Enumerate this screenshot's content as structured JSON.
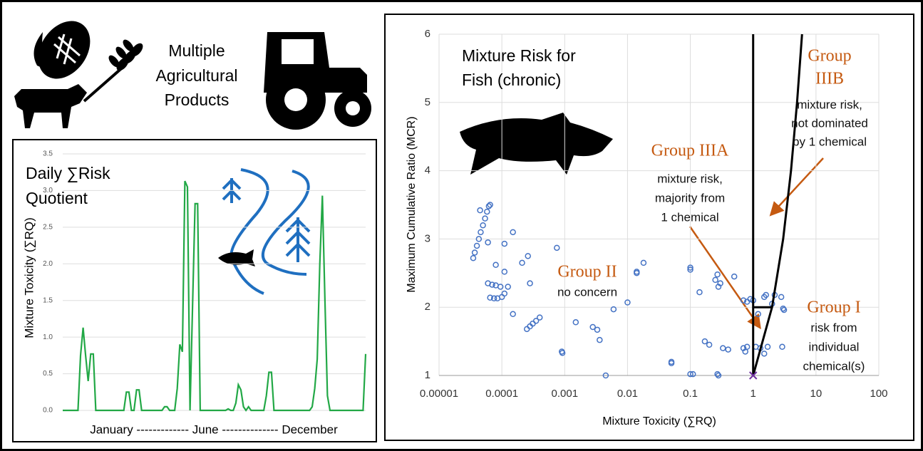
{
  "header": {
    "title_lines": [
      "Multiple",
      "Agricultural",
      "Products"
    ]
  },
  "chart_data": [
    {
      "type": "line",
      "title_lines": [
        "Daily ∑Risk",
        "Quotient"
      ],
      "y_label": "Mixture Toxicity (∑RQ)",
      "x_label": "January ------------- June -------------- December",
      "color": "#22a846",
      "ylim": [
        0,
        3.5
      ],
      "yticks": [
        {
          "value": 0,
          "label": "0.0"
        },
        0.5,
        {
          "value": 1,
          "label": "1.0"
        },
        1.5,
        {
          "value": 2,
          "label": "2.0"
        },
        2.5,
        {
          "value": 3,
          "label": "3.0"
        },
        3.5
      ],
      "grid": true,
      "values": [
        0,
        0,
        0,
        0,
        0,
        0,
        0,
        0.75,
        1.13,
        0.75,
        0.4,
        0.77,
        0.77,
        0,
        0,
        0,
        0,
        0,
        0,
        0,
        0,
        0,
        0,
        0,
        0,
        0.25,
        0.25,
        0,
        0,
        0.28,
        0.28,
        0,
        0,
        0,
        0,
        0,
        0,
        0,
        0,
        0,
        0.05,
        0.05,
        0,
        0,
        0,
        0.3,
        0.9,
        0.8,
        3.13,
        3.05,
        0,
        1.4,
        2.82,
        2.82,
        0,
        0,
        0,
        0,
        0,
        0,
        0,
        0,
        0,
        0,
        0,
        0.02,
        0,
        0,
        0.1,
        0.35,
        0.28,
        0.05,
        0,
        0.05,
        0,
        0,
        0,
        0,
        0,
        0,
        0.2,
        0.52,
        0.52,
        0,
        0,
        0,
        0,
        0,
        0,
        0,
        0,
        0,
        0,
        0,
        0,
        0,
        0,
        0,
        0.05,
        0.3,
        0.7,
        2.0,
        2.93,
        1.5,
        0.2,
        0,
        0,
        0,
        0,
        0,
        0,
        0,
        0,
        0,
        0,
        0,
        0,
        0,
        0,
        0.77
      ]
    },
    {
      "type": "scatter",
      "title_lines": [
        "Mixture Risk for",
        "Fish (chronic)"
      ],
      "y_label": "Maximum Cumulative Ratio (MCR)",
      "x_label": "Mixture Toxicity (∑RQ)",
      "log_x": true,
      "grid": true,
      "xlim": [
        1e-05,
        100
      ],
      "xticks": [
        1e-05,
        0.0001,
        0.001,
        0.01,
        0.1,
        1,
        10,
        100
      ],
      "ylim": [
        1,
        6
      ],
      "yticks": [
        1,
        2,
        3,
        4,
        5,
        6
      ],
      "points": {
        "color": "#4472c4",
        "x": [
          3.5e-05,
          3.7e-05,
          4e-05,
          4.3e-05,
          4.6e-05,
          5e-05,
          5.4e-05,
          5.8e-05,
          6.2e-05,
          6.5e-05,
          4.5e-05,
          6e-05,
          7e-05,
          8e-05,
          9.5e-05,
          6.5e-05,
          7.5e-05,
          8.5e-05,
          0.0001,
          0.00011,
          0.000125,
          0.00025,
          0.00028,
          0.00031,
          0.00035,
          0.0004,
          6e-05,
          0.00015,
          0.00011,
          0.00011,
          8e-05,
          0.00015,
          0.00021,
          0.00026,
          0.00028,
          0.00075,
          0.0009,
          0.00092,
          0.0015,
          0.0028,
          0.0033,
          0.0036,
          0.0045,
          0.006,
          0.01,
          0.014,
          0.014,
          0.018,
          0.05,
          0.05,
          0.1,
          0.1,
          0.1,
          0.11,
          0.14,
          0.17,
          0.2,
          0.25,
          0.27,
          0.28,
          0.27,
          0.28,
          0.3,
          0.33,
          0.4,
          0.5,
          0.7,
          0.75,
          0.8,
          0.8,
          0.9,
          1.0,
          1.1,
          1.2,
          1.5,
          1.5,
          1.6,
          1.7,
          2.0,
          2.2,
          2.8,
          2.9,
          3.0,
          3.1,
          0.7,
          1.3
        ],
        "y": [
          2.72,
          2.8,
          2.9,
          3.0,
          3.1,
          3.2,
          3.3,
          3.4,
          3.48,
          3.5,
          3.42,
          2.35,
          2.33,
          2.32,
          2.3,
          2.14,
          2.13,
          2.13,
          2.15,
          2.2,
          2.3,
          1.68,
          1.72,
          1.76,
          1.8,
          1.85,
          2.95,
          3.1,
          2.93,
          2.52,
          2.62,
          1.9,
          2.65,
          2.75,
          2.35,
          2.87,
          1.35,
          1.33,
          1.78,
          1.71,
          1.67,
          1.52,
          1.0,
          1.97,
          2.07,
          2.52,
          2.5,
          2.65,
          1.2,
          1.18,
          2.58,
          2.55,
          1.02,
          1.02,
          2.22,
          1.5,
          1.45,
          2.4,
          2.48,
          2.3,
          1.02,
          1.0,
          2.35,
          1.4,
          1.38,
          2.45,
          1.4,
          1.35,
          1.42,
          2.08,
          2.12,
          2.1,
          1.42,
          1.9,
          1.32,
          2.15,
          2.18,
          1.42,
          2.05,
          2.18,
          2.15,
          1.42,
          1.98,
          1.96,
          2.1,
          1.4
        ]
      },
      "lines": [
        {
          "color": "#000000",
          "x": [
            1,
            1
          ],
          "y": [
            1,
            6
          ]
        },
        {
          "color": "#000000",
          "x": [
            1,
            2,
            3,
            4,
            5,
            6
          ],
          "y": [
            1,
            2,
            3,
            4,
            5,
            6
          ]
        },
        {
          "color": "#000000",
          "x": [
            1,
            2
          ],
          "y": [
            2,
            2
          ]
        }
      ],
      "cross": {
        "color": "#7030a0",
        "x": 1,
        "y": 1
      },
      "annotation_color": "#c55a11",
      "annotations": [
        {
          "heading": [
            "Group",
            "IIIB"
          ],
          "lines": [
            "mixture risk,",
            "not dominated",
            "by 1 chemical"
          ]
        },
        {
          "heading": [
            "Group IIIA"
          ],
          "lines": [
            "mixture risk,",
            "majority from",
            "1 chemical"
          ]
        },
        {
          "heading": [
            "Group II"
          ],
          "lines": [
            "no concern"
          ]
        },
        {
          "heading": [
            "Group I"
          ],
          "lines": [
            "risk from",
            "individual",
            "chemical(s)"
          ]
        }
      ]
    }
  ]
}
